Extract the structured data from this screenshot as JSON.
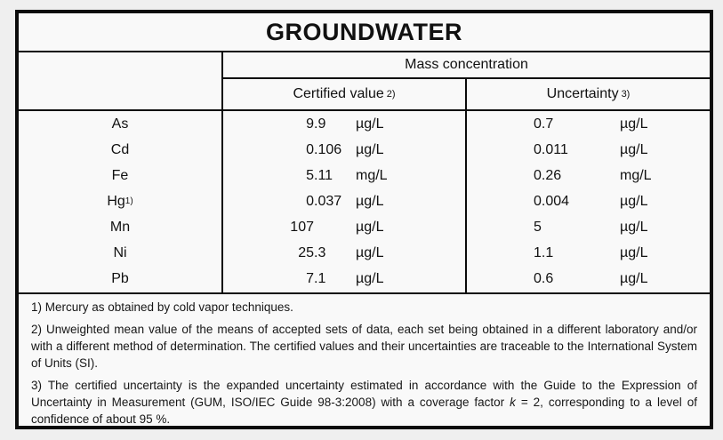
{
  "colors": {
    "page_background": "#efefef",
    "table_background": "#f9f9f9",
    "border": "#0b0b0b"
  },
  "title": "GROUNDWATER",
  "header": {
    "group_label": "Mass concentration",
    "certified_label": "Certified value",
    "certified_sup": "2)",
    "uncertainty_label": "Uncertainty",
    "uncertainty_sup": "3)"
  },
  "rows": [
    {
      "element": "As",
      "element_sup": "",
      "value": "9.9",
      "value_unit": "µg/L",
      "uncertainty": "0.7",
      "uncertainty_unit": "µg/L"
    },
    {
      "element": "Cd",
      "element_sup": "",
      "value": "0.106",
      "value_unit": "µg/L",
      "uncertainty": "0.011",
      "uncertainty_unit": "µg/L"
    },
    {
      "element": "Fe",
      "element_sup": "",
      "value": "5.11",
      "value_unit": "mg/L",
      "uncertainty": "0.26",
      "uncertainty_unit": "mg/L"
    },
    {
      "element": "Hg",
      "element_sup": "1)",
      "value": "0.037",
      "value_unit": "µg/L",
      "uncertainty": "0.004",
      "uncertainty_unit": "µg/L"
    },
    {
      "element": "Mn",
      "element_sup": "",
      "value": "107",
      "value_unit": "µg/L",
      "uncertainty": "5",
      "uncertainty_unit": "µg/L"
    },
    {
      "element": "Ni",
      "element_sup": "",
      "value": "25.3",
      "value_unit": "µg/L",
      "uncertainty": "1.1",
      "uncertainty_unit": "µg/L"
    },
    {
      "element": "Pb",
      "element_sup": "",
      "value": "7.1",
      "value_unit": "µg/L",
      "uncertainty": "0.6",
      "uncertainty_unit": "µg/L"
    }
  ],
  "footnotes": {
    "note1": "1) Mercury as obtained by cold vapor techniques.",
    "note2": "2) Unweighted mean value of the means of accepted sets of data, each set being obtained in a different laboratory and/or with a different method of determination. The certified values and their uncertainties are traceable to the International System of Units (SI).",
    "note3_prefix": "3) The certified uncertainty is the expanded uncertainty estimated in accordance with the Guide to the Expression of Uncertainty in Measurement (GUM, ISO/IEC Guide 98-3:2008) with a coverage factor ",
    "note3_k": "k",
    "note3_suffix": " = 2, corresponding to a level of confidence of about 95 %."
  }
}
